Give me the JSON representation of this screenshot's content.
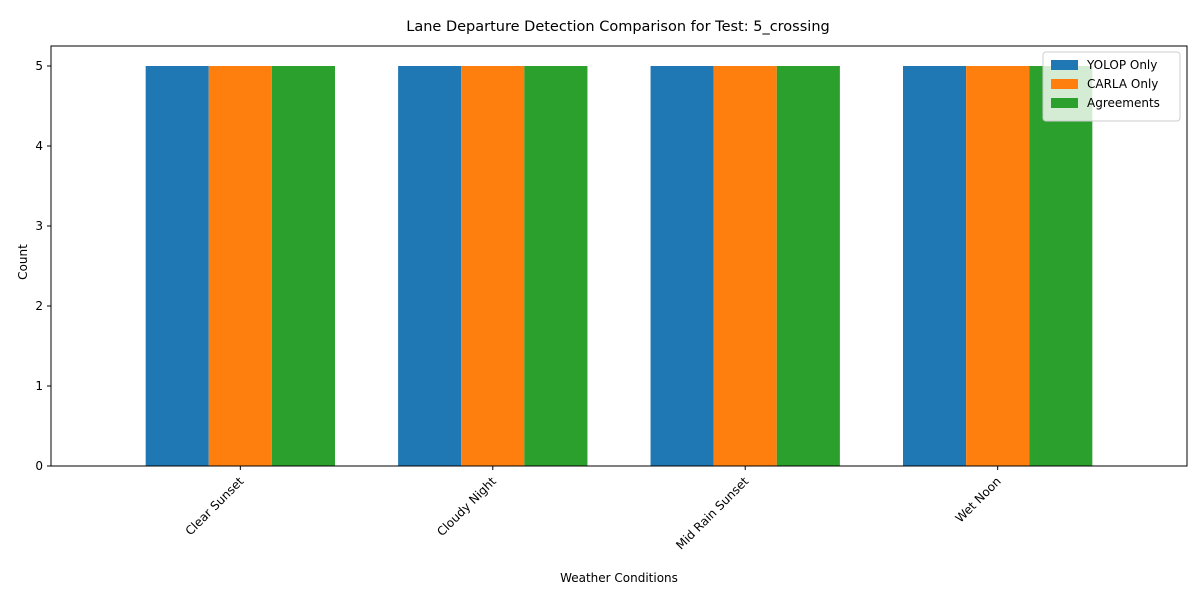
{
  "chart_data": {
    "type": "bar",
    "title": "Lane Departure Detection Comparison for Test: 5_crossing",
    "xlabel": "Weather Conditions",
    "ylabel": "Count",
    "categories": [
      "Clear Sunset",
      "Cloudy Night",
      "Mid Rain Sunset",
      "Wet Noon"
    ],
    "series": [
      {
        "name": "YOLOP Only",
        "color": "#1f77b4",
        "values": [
          5,
          5,
          5,
          5
        ]
      },
      {
        "name": "CARLA Only",
        "color": "#ff7f0e",
        "values": [
          5,
          5,
          5,
          5
        ]
      },
      {
        "name": "Agreements",
        "color": "#2ca02c",
        "values": [
          5,
          5,
          5,
          5
        ]
      }
    ],
    "ylim": [
      0,
      5.25
    ],
    "yticks": [
      0,
      1,
      2,
      3,
      4,
      5
    ],
    "legend_position": "top-right",
    "grid": false
  }
}
